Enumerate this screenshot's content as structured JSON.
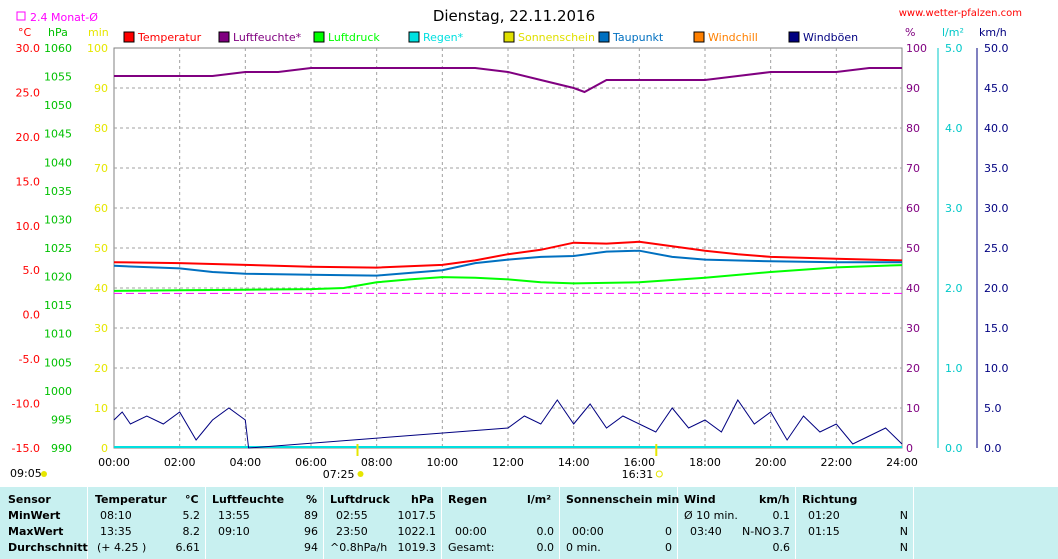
{
  "page": {
    "title": "Dienstag, 22.11.2016",
    "site": "www.wetter-pfalzen.com",
    "monthly_avg_label": "2.4 Monat-Ø"
  },
  "units": {
    "left": [
      "°C",
      "hPa",
      "min"
    ],
    "right": [
      "%",
      "l/m²",
      "km/h"
    ]
  },
  "markers": {
    "sunrise": "07:25",
    "sunset": "16:31",
    "left_time": "09:05"
  },
  "colors": {
    "temperature": "#ff0000",
    "humidity": "#800080",
    "pressure": "#00ff00",
    "rain": "#00e0e0",
    "sunshine": "#e0e000",
    "dewpoint": "#0070c0",
    "windchill": "#ff8000",
    "gusts": "#000080",
    "monthly_avg": "#ff00ff",
    "sun_axis": "#e6e600",
    "rain_axis": "#00c8c8",
    "table_bg": "#c8f0f0"
  },
  "chart_data": {
    "type": "line",
    "title": "Dienstag, 22.11.2016",
    "x_range": [
      "00:00",
      "24:00"
    ],
    "x_ticks": [
      "00:00",
      "02:00",
      "04:00",
      "06:00",
      "08:00",
      "10:00",
      "12:00",
      "14:00",
      "16:00",
      "18:00",
      "20:00",
      "22:00",
      "24:00"
    ],
    "legend": [
      "Temperatur",
      "Luftfeuchte*",
      "Luftdruck",
      "Regen*",
      "Sonnenschein",
      "Taupunkt",
      "Windchill",
      "Windböen"
    ],
    "axes": {
      "temp": {
        "unit": "°C",
        "min": -15,
        "max": 30,
        "ticks": [
          "30.0",
          "25.0",
          "20.0",
          "15.0",
          "10.0",
          "5.0",
          "0.0",
          "-5.0",
          "-10.0",
          "-15.0"
        ]
      },
      "pressure": {
        "unit": "hPa",
        "min": 990,
        "max": 1060,
        "ticks": [
          "1060",
          "1055",
          "1050",
          "1045",
          "1040",
          "1035",
          "1030",
          "1025",
          "1020",
          "1015",
          "1010",
          "1005",
          "1000",
          "995",
          "990"
        ]
      },
      "sun": {
        "unit": "min",
        "min": 0,
        "max": 100,
        "ticks": [
          "100",
          "90",
          "80",
          "70",
          "60",
          "50",
          "40",
          "30",
          "20",
          "10",
          "0"
        ]
      },
      "humidity": {
        "unit": "%",
        "min": 0,
        "max": 100,
        "ticks": [
          "100",
          "90",
          "80",
          "70",
          "60",
          "50",
          "40",
          "30",
          "20",
          "10",
          "0"
        ]
      },
      "rain": {
        "unit": "l/m²",
        "min": 0,
        "max": 5,
        "ticks": [
          "5.0",
          "4.0",
          "3.0",
          "2.0",
          "1.0",
          "0.0"
        ]
      },
      "wind": {
        "unit": "km/h",
        "min": 0,
        "max": 50,
        "ticks": [
          "50.0",
          "45.0",
          "40.0",
          "35.0",
          "30.0",
          "25.0",
          "20.0",
          "15.0",
          "10.0",
          "5.0",
          "0.0"
        ]
      }
    },
    "monthly_avg_temp": 2.4,
    "series": [
      {
        "name": "Temperatur",
        "axis": "temp",
        "x": [
          0,
          2,
          4,
          6,
          8,
          10,
          11,
          12,
          13,
          14,
          15,
          16,
          17,
          18,
          19,
          20,
          22,
          24
        ],
        "values": [
          5.9,
          5.8,
          5.6,
          5.4,
          5.3,
          5.6,
          6.1,
          6.8,
          7.3,
          8.1,
          8.0,
          8.2,
          7.7,
          7.2,
          6.8,
          6.5,
          6.3,
          6.1
        ]
      },
      {
        "name": "Luftfeuchte*",
        "axis": "humidity",
        "x": [
          0,
          1,
          2,
          3,
          4,
          5,
          6,
          8,
          10,
          11,
          12,
          13,
          14,
          14.33,
          15,
          16,
          17,
          18,
          19,
          20,
          22,
          23,
          24
        ],
        "values": [
          93,
          93,
          93,
          93,
          94,
          94,
          95,
          95,
          95,
          95,
          94,
          92,
          90,
          89,
          92,
          92,
          92,
          92,
          93,
          94,
          94,
          95,
          95
        ]
      },
      {
        "name": "Luftdruck",
        "axis": "pressure",
        "x": [
          0,
          2,
          4,
          6,
          7,
          8,
          9,
          10,
          11,
          12,
          13,
          14,
          16,
          18,
          20,
          22,
          24
        ],
        "values": [
          1017.5,
          1017.6,
          1017.7,
          1017.8,
          1018.0,
          1019.0,
          1019.5,
          1019.9,
          1019.8,
          1019.5,
          1019.0,
          1018.8,
          1019.0,
          1019.8,
          1020.8,
          1021.6,
          1022.0
        ]
      },
      {
        "name": "Taupunkt",
        "axis": "temp",
        "x": [
          0,
          2,
          3,
          4,
          6,
          8,
          10,
          11,
          12,
          13,
          14,
          15,
          16,
          17,
          18,
          20,
          22,
          24
        ],
        "values": [
          5.5,
          5.2,
          4.8,
          4.6,
          4.5,
          4.4,
          5.0,
          5.8,
          6.2,
          6.5,
          6.6,
          7.1,
          7.2,
          6.5,
          6.2,
          6.0,
          5.9,
          5.9
        ]
      },
      {
        "name": "Windböen",
        "axis": "wind",
        "x": [
          0,
          0.25,
          0.5,
          1,
          1.5,
          2,
          2.5,
          3,
          3.5,
          4,
          4.1,
          12,
          12.5,
          13,
          13.5,
          14,
          14.5,
          15,
          15.5,
          16,
          16.5,
          17,
          17.5,
          18,
          18.5,
          19,
          19.5,
          20,
          20.5,
          21,
          21.5,
          22,
          22.5,
          23,
          23.5,
          24
        ],
        "values": [
          3.5,
          4.5,
          3.0,
          4.0,
          3.0,
          4.5,
          1.0,
          3.5,
          5.0,
          3.5,
          0,
          2.5,
          4.0,
          3.0,
          6.0,
          3.0,
          5.5,
          2.5,
          4.0,
          3.0,
          2.0,
          5.0,
          2.5,
          3.5,
          2.0,
          6.0,
          3.0,
          4.5,
          1.0,
          4.0,
          2.0,
          3.0,
          0.5,
          1.5,
          2.5,
          0.5
        ]
      }
    ]
  },
  "table": {
    "headers": {
      "sensor": "Sensor",
      "temp": "Temperatur",
      "temp_unit": "°C",
      "hum": "Luftfeuchte",
      "hum_unit": "%",
      "press": "Luftdruck",
      "press_unit": "hPa",
      "rain": "Regen",
      "rain_unit": "l/m²",
      "sun": "Sonnenschein min",
      "wind": "Wind",
      "wind_unit": "km/h",
      "dir": "Richtung"
    },
    "rows": [
      {
        "label": "MinWert",
        "temp_time": "08:10",
        "temp_val": "5.2",
        "hum_time": "13:55",
        "hum_val": "89",
        "press_time": "02:55",
        "press_val": "1017.5",
        "rain_time": "",
        "rain_val": "",
        "sun_time": "",
        "sun_val": "",
        "wind_time": "Ø 10 min.",
        "wind_dir": "",
        "wind_val": "0.1",
        "dir_time": "01:20",
        "dir_val": "N"
      },
      {
        "label": "MaxWert",
        "temp_time": "13:35",
        "temp_val": "8.2",
        "hum_time": "09:10",
        "hum_val": "96",
        "press_time": "23:50",
        "press_val": "1022.1",
        "rain_time": "00:00",
        "rain_val": "0.0",
        "sun_time": "00:00",
        "sun_val": "0",
        "wind_time": "03:40",
        "wind_dir": "N-NO",
        "wind_val": "3.7",
        "dir_time": "01:15",
        "dir_val": "N"
      },
      {
        "label": "Durchschnitt",
        "temp_time": "(+ 4.25 )",
        "temp_val": "6.61",
        "hum_time": "",
        "hum_val": "94",
        "press_time": "^0.8hPa/h",
        "press_val": "1019.3",
        "rain_time": "Gesamt:",
        "rain_val": "0.0",
        "sun_time": "0 min.",
        "sun_val": "0",
        "wind_time": "",
        "wind_dir": "",
        "wind_val": "0.6",
        "dir_time": "",
        "dir_val": "N"
      }
    ]
  }
}
